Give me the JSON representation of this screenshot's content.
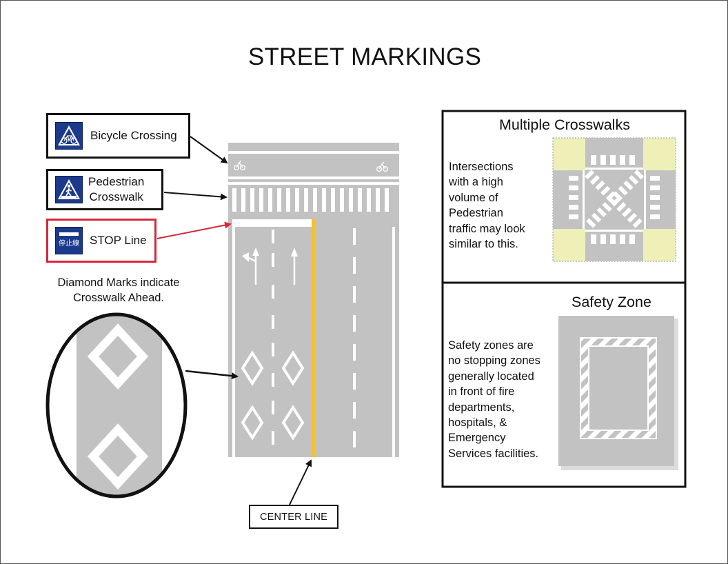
{
  "title": "STREET MARKINGS",
  "labels": {
    "bicycle_crossing": "Bicycle Crossing",
    "pedestrian_crosswalk_line1": "Pedestrian",
    "pedestrian_crosswalk_line2": "Crosswalk",
    "stop_line": "STOP Line",
    "stop_sign_text": "停止線"
  },
  "diamond_note": {
    "line1": "Diamond Marks indicate",
    "line2": "Crosswalk Ahead."
  },
  "center_line": "CENTER LINE",
  "panels": {
    "multiple_crosswalks": {
      "title": "Multiple Crosswalks",
      "text_lines": [
        "Intersections",
        "with a high",
        "volume of",
        "Pedestrian",
        "traffic may look",
        "similar to this."
      ]
    },
    "safety_zone": {
      "title": "Safety Zone",
      "text_lines": [
        "Safety zones are",
        "no stopping zones",
        "generally located",
        "in front of fire",
        "departments,",
        "hospitals, &",
        "Emergency",
        "Services facilities."
      ]
    }
  },
  "colors": {
    "road": "#c2c2c2",
    "center_line": "#f2c230",
    "sign_blue": "#1c3a8c",
    "stop_box_border": "#d6263a",
    "corner_fill": "#eef0b8"
  }
}
